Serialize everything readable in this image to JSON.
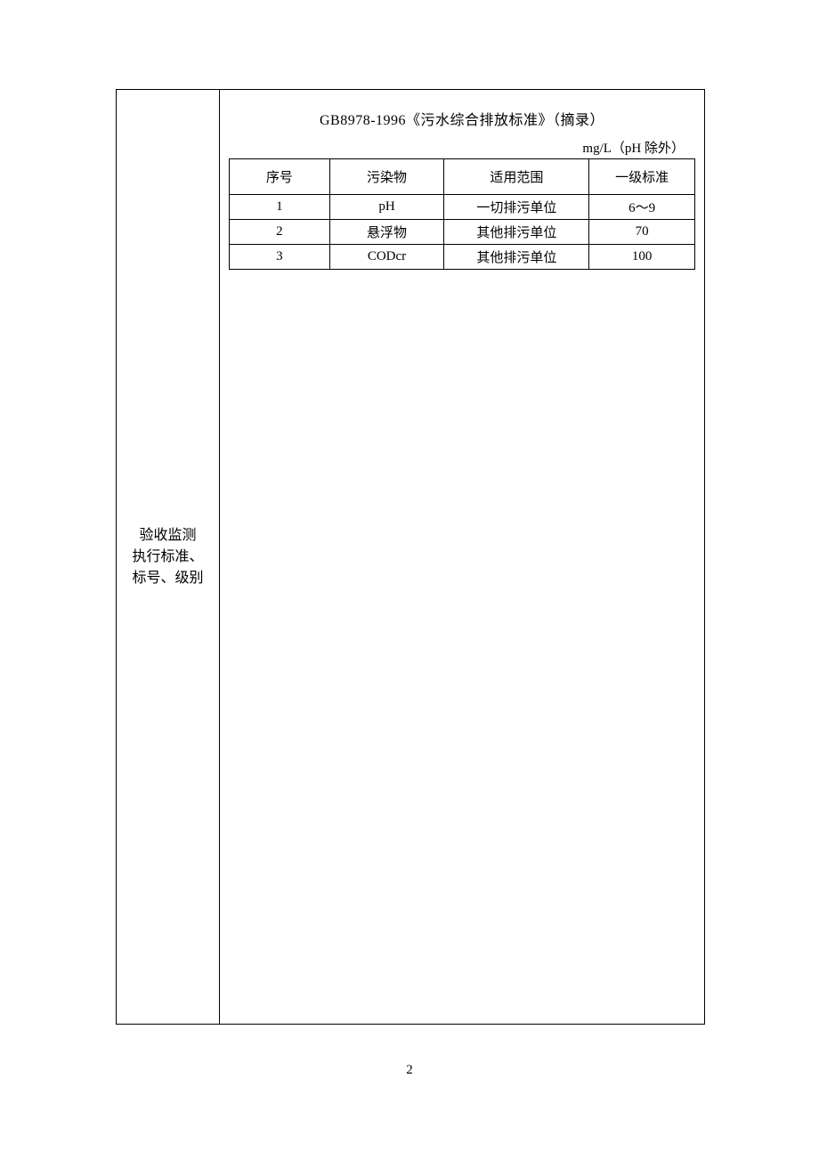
{
  "leftColumn": {
    "line1": "验收监测",
    "line2": "执行标准、",
    "line3": "标号、级别"
  },
  "content": {
    "title": "GB8978-1996《污水综合排放标准》（摘录）",
    "unit": "mg/L（pH 除外）",
    "table": {
      "headers": {
        "seq": "序号",
        "pollutant": "污染物",
        "scope": "适用范围",
        "standard": "一级标准"
      },
      "rows": [
        {
          "seq": "1",
          "pollutant": "pH",
          "scope": "一切排污单位",
          "standard": "6～9"
        },
        {
          "seq": "2",
          "pollutant": "悬浮物",
          "scope": "其他排污单位",
          "standard": "70"
        },
        {
          "seq": "3",
          "pollutant": "CODcr",
          "scope": "其他排污单位",
          "standard": "100"
        }
      ]
    }
  },
  "pageNumber": "2"
}
